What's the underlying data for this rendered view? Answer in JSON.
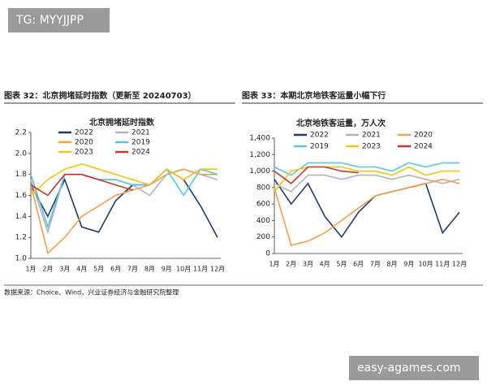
{
  "watermark_top": "TG: MYYJJPP",
  "watermark_bottom": "easy-agames.com",
  "figure_titles": [
    "图表 32：北京拥堵延时指数（更新至 20240703）",
    "图表 33：本期北京地铁客运量小幅下行"
  ],
  "source": "数据来源：Choice、Wind，兴业证券经济与金融研究院整理",
  "chart_data": [
    {
      "type": "line",
      "title": "北京拥堵延时指数",
      "categories": [
        "1月",
        "2月",
        "3月",
        "4月",
        "5月",
        "6月",
        "7月",
        "8月",
        "9月",
        "10月",
        "11月",
        "12月"
      ],
      "series": [
        {
          "name": "2022",
          "color": "#1f3a6e",
          "values": [
            1.7,
            1.4,
            1.75,
            1.3,
            1.25,
            1.55,
            1.7,
            1.7,
            1.85,
            1.75,
            1.5,
            1.2
          ]
        },
        {
          "name": "2021",
          "color": "#b4b4b4",
          "values": [
            1.75,
            1.25,
            1.8,
            1.8,
            1.75,
            1.75,
            1.7,
            1.6,
            1.8,
            1.85,
            1.8,
            1.75
          ]
        },
        {
          "name": "2020",
          "color": "#f0a050",
          "values": [
            1.7,
            1.05,
            1.2,
            1.4,
            1.5,
            1.6,
            1.65,
            1.7,
            1.8,
            1.85,
            1.8,
            1.8
          ]
        },
        {
          "name": "2019",
          "color": "#5cc4e0",
          "values": [
            1.8,
            1.3,
            1.8,
            1.8,
            1.75,
            1.75,
            1.7,
            1.7,
            1.85,
            1.6,
            1.85,
            1.8
          ]
        },
        {
          "name": "2023",
          "color": "#f2c413",
          "values": [
            1.6,
            1.75,
            1.85,
            1.9,
            1.85,
            1.8,
            1.75,
            1.7,
            1.85,
            1.75,
            1.85,
            1.85
          ]
        },
        {
          "name": "2024",
          "color": "#c0392b",
          "values": [
            1.7,
            1.6,
            1.8,
            1.8,
            1.75,
            1.7,
            1.65,
            null,
            null,
            null,
            null,
            null
          ]
        }
      ],
      "ylim": [
        1.0,
        2.2
      ],
      "yticks": [
        {
          "value": 1.0,
          "label": "1.0"
        },
        1.2,
        1.4,
        1.6,
        1.8,
        {
          "value": 2.0,
          "label": "2.0"
        },
        2.2
      ]
    },
    {
      "type": "line",
      "title": "北京地铁客运量，万人次",
      "categories": [
        "1月",
        "2月",
        "3月",
        "4月",
        "5月",
        "6月",
        "7月",
        "8月",
        "9月",
        "10月",
        "11月",
        "12月"
      ],
      "series": [
        {
          "name": "2022",
          "color": "#1f3a6e",
          "values": [
            900,
            600,
            850,
            450,
            200,
            500,
            700,
            750,
            800,
            850,
            250,
            500
          ]
        },
        {
          "name": "2021",
          "color": "#b4b4b4",
          "values": [
            850,
            750,
            950,
            950,
            900,
            950,
            950,
            900,
            950,
            900,
            850,
            900
          ]
        },
        {
          "name": "2020",
          "color": "#f0a050",
          "values": [
            800,
            100,
            150,
            250,
            400,
            550,
            700,
            750,
            800,
            850,
            900,
            850
          ]
        },
        {
          "name": "2019",
          "color": "#5cc4e0",
          "values": [
            1050,
            950,
            1100,
            1100,
            1100,
            1050,
            1050,
            1000,
            1100,
            1050,
            1100,
            1100
          ]
        },
        {
          "name": "2023",
          "color": "#f2c413",
          "values": [
            750,
            1000,
            1050,
            1050,
            1050,
            1000,
            1000,
            950,
            1050,
            950,
            1000,
            1000
          ]
        },
        {
          "name": "2024",
          "color": "#c0392b",
          "values": [
            1000,
            850,
            1050,
            1050,
            1000,
            980,
            null,
            null,
            null,
            null,
            null,
            null
          ]
        }
      ],
      "ylim": [
        0,
        1400
      ],
      "yticks": [
        0,
        200,
        400,
        600,
        800,
        {
          "value": 1000,
          "label": "1,000"
        },
        {
          "value": 1200,
          "label": "1,200"
        },
        {
          "value": 1400,
          "label": "1,400"
        }
      ]
    }
  ]
}
